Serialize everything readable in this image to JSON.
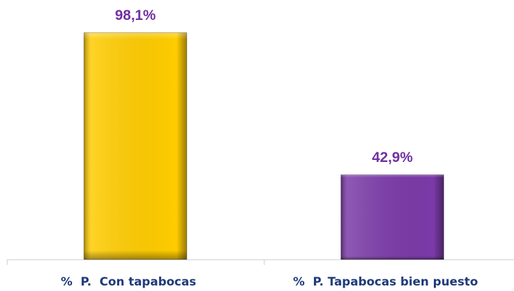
{
  "chart_data": {
    "type": "bar",
    "categories": [
      "%  P.  Con tapabocas",
      "%  P. Tapabocas bien puesto"
    ],
    "values": [
      98.1,
      42.9
    ],
    "value_labels": [
      "98,1%",
      "42,9%"
    ],
    "colors": [
      "#ffcc00",
      "#7b3aa8"
    ],
    "ylim": [
      10,
      100
    ]
  }
}
